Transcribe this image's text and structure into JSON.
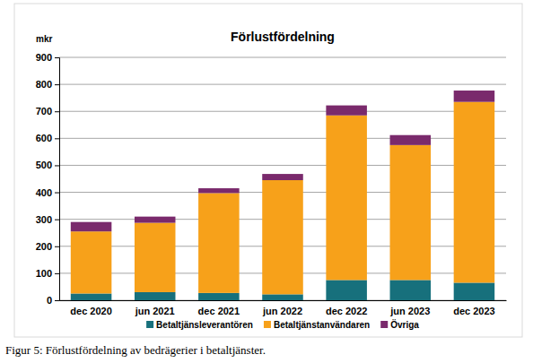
{
  "chart_data": {
    "type": "bar",
    "stacked": true,
    "title": "Förlustfördelning",
    "ylabel": "mkr",
    "categories": [
      "dec 2020",
      "jun 2021",
      "dec 2021",
      "jun 2022",
      "dec 2022",
      "jun 2023",
      "dec 2023"
    ],
    "series": [
      {
        "name": "Betaltjänsleverantören",
        "color": "#17707c",
        "values": [
          25,
          30,
          27,
          22,
          75,
          75,
          65
        ]
      },
      {
        "name": "Betaltjänstanvändaren",
        "color": "#f7a11a",
        "values": [
          230,
          257,
          370,
          423,
          610,
          500,
          670
        ]
      },
      {
        "name": "Övriga",
        "color": "#7a2a6c",
        "values": [
          35,
          23,
          18,
          23,
          37,
          37,
          42
        ]
      }
    ],
    "ylim": [
      0,
      900
    ],
    "yticks": [
      0,
      100,
      200,
      300,
      400,
      500,
      600,
      700,
      800,
      900
    ],
    "grid": true,
    "legend": "bottom"
  },
  "caption": "Figur 5: Förlustfördelning av bedrägerier i betaltjänster."
}
